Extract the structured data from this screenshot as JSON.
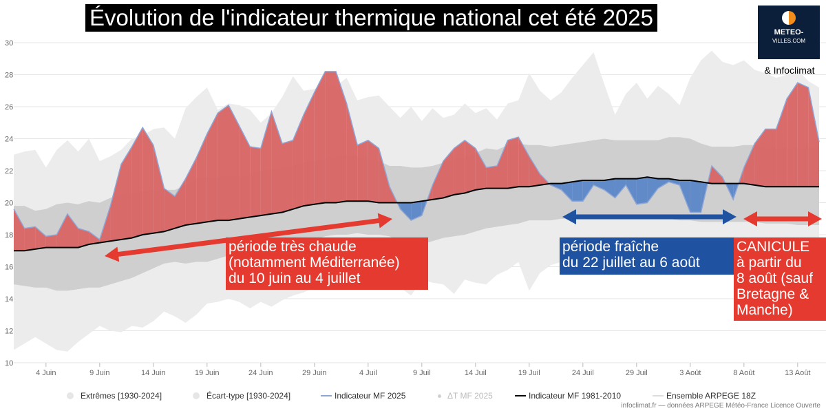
{
  "title": "Évolution de l'indicateur thermique national cet été 2025",
  "logo": {
    "name": "METEO-",
    "subline": "VILLES.COM",
    "icon": "sun-half-icon"
  },
  "partner": "& Infoclimat",
  "source": "infoclimat.fr — données ARPEGE Météo-France Licence Ouverte",
  "colors": {
    "extremes": "#ececec",
    "stddev": "#cfcfcf",
    "indicator_line": "#8ea6d6",
    "above_fill": "#d96464",
    "below_fill": "#5b86c8",
    "normal": "#000000",
    "annotation_red": "#e53a2f",
    "annotation_blue": "#1f52a0"
  },
  "annotations": [
    {
      "id": "hot",
      "color": "red",
      "lines": [
        "période très chaude",
        "(notamment Méditerranée)",
        "du 10 juin au 4 juillet"
      ],
      "arrow_from": "10 Jun",
      "arrow_to": "5 Jul"
    },
    {
      "id": "cool",
      "color": "blue",
      "lines": [
        "période fraîche",
        "du 22 juillet au 6 août"
      ],
      "arrow_from": "22 Jul",
      "arrow_to": "6 Aug"
    },
    {
      "id": "heatwave",
      "color": "red",
      "lines": [
        "CANICULE",
        "à partir du",
        "8 août (sauf",
        "Bretagne &",
        "Manche)"
      ],
      "arrow_from": "6 Aug",
      "arrow_to": "16 Aug"
    }
  ],
  "legend": [
    {
      "label": "Extrêmes [1930-2024]",
      "symbol": "dot",
      "color": "#e3e3e3"
    },
    {
      "label": "Écart-type [1930-2024]",
      "symbol": "dot",
      "color": "#e3e3e3"
    },
    {
      "label": "Indicateur MF 2025",
      "symbol": "line",
      "color": "#8ea6d6"
    },
    {
      "label": "ΔT MF 2025",
      "symbol": "smalldot",
      "color": "#cfcfcf",
      "faded": true
    },
    {
      "label": "Indicateur MF 1981-2010",
      "symbol": "line",
      "color": "#000000"
    },
    {
      "label": "Ensemble ARPEGE 18Z",
      "symbol": "line",
      "color": "#dcdcdc"
    }
  ],
  "chart_data": {
    "type": "area",
    "title": "Évolution de l'indicateur thermique national cet été 2025",
    "xlabel": "",
    "ylabel": "",
    "x_start": "1 Jun",
    "ylim": [
      10,
      30
    ],
    "yticks": [
      10,
      12,
      14,
      16,
      18,
      20,
      22,
      24,
      26,
      28,
      30
    ],
    "xticks": [
      "4 Juin",
      "9 Juin",
      "14 Juin",
      "19 Juin",
      "24 Juin",
      "29 Juin",
      "4 Juil",
      "9 Juil",
      "14 Juil",
      "19 Juil",
      "24 Juil",
      "29 Juil",
      "3 Août",
      "8 Août",
      "13 Août"
    ],
    "grid": true,
    "legend_position": "bottom",
    "series": [
      {
        "name": "Indicateur MF 2025",
        "values": [
          19.6,
          18.4,
          18.5,
          17.9,
          18.0,
          19.3,
          18.4,
          18.2,
          17.7,
          19.8,
          22.4,
          23.5,
          24.7,
          23.6,
          20.9,
          20.4,
          21.5,
          22.8,
          24.3,
          25.6,
          26.1,
          24.8,
          23.5,
          23.4,
          25.7,
          23.7,
          23.9,
          25.5,
          26.9,
          28.2,
          28.2,
          26.2,
          23.6,
          23.9,
          23.4,
          21.0,
          19.6,
          18.9,
          19.2,
          21.1,
          22.6,
          23.4,
          23.9,
          23.4,
          22.2,
          22.3,
          23.9,
          24.1,
          22.9,
          21.8,
          21.1,
          20.8,
          20.1,
          20.1,
          21.1,
          20.8,
          20.3,
          21.1,
          19.9,
          20.0,
          20.9,
          21.3,
          21.1,
          19.4,
          19.4,
          22.3,
          21.6,
          20.2,
          22.2,
          23.7,
          24.6,
          24.6,
          26.5,
          27.5,
          27.2,
          23.8
        ]
      },
      {
        "name": "Indicateur MF 1981-2010",
        "values": [
          17.0,
          17.0,
          17.1,
          17.2,
          17.2,
          17.2,
          17.2,
          17.4,
          17.5,
          17.6,
          17.7,
          17.8,
          18.0,
          18.1,
          18.2,
          18.4,
          18.6,
          18.7,
          18.8,
          18.9,
          18.9,
          19.0,
          19.1,
          19.2,
          19.3,
          19.4,
          19.6,
          19.8,
          19.9,
          20.0,
          20.0,
          20.1,
          20.1,
          20.1,
          20.0,
          20.0,
          20.0,
          20.0,
          20.1,
          20.2,
          20.3,
          20.5,
          20.6,
          20.8,
          20.9,
          20.9,
          20.9,
          21.0,
          21.0,
          21.1,
          21.2,
          21.2,
          21.3,
          21.4,
          21.4,
          21.4,
          21.5,
          21.5,
          21.5,
          21.6,
          21.5,
          21.5,
          21.4,
          21.4,
          21.3,
          21.2,
          21.2,
          21.2,
          21.2,
          21.1,
          21.0,
          21.0,
          21.0,
          21.0,
          21.0,
          21.0
        ]
      }
    ],
    "bands": [
      {
        "name": "Extrêmes [1930-2024]",
        "upper": [
          23.0,
          23.2,
          23.3,
          22.2,
          23.3,
          23.9,
          23.2,
          24.0,
          22.6,
          22.9,
          23.3,
          24.0,
          24.2,
          24.6,
          24.7,
          24.0,
          25.9,
          26.6,
          27.2,
          25.8,
          26.2,
          26.1,
          25.8,
          25.0,
          25.6,
          26.6,
          27.9,
          27.0,
          27.1,
          27.5,
          27.3,
          27.8,
          26.4,
          26.6,
          26.7,
          26.0,
          25.3,
          26.0,
          25.1,
          25.9,
          25.3,
          25.5,
          26.2,
          25.6,
          25.9,
          25.2,
          26.2,
          26.4,
          28.1,
          27.0,
          26.4,
          26.9,
          27.8,
          28.6,
          29.4,
          27.4,
          25.5,
          26.8,
          27.5,
          26.5,
          27.3,
          26.8,
          26.1,
          27.8,
          28.9,
          29.5,
          28.8,
          28.6,
          28.9,
          28.3,
          28.1,
          27.8,
          28.0,
          28.3,
          27.6,
          27.2
        ],
        "lower": [
          10.8,
          11.2,
          11.6,
          11.2,
          10.8,
          10.7,
          11.3,
          11.8,
          12.3,
          12.0,
          11.9,
          12.3,
          12.2,
          12.6,
          13.2,
          12.9,
          12.5,
          13.0,
          13.7,
          13.8,
          14.0,
          13.8,
          13.4,
          13.8,
          13.5,
          13.9,
          14.2,
          14.4,
          14.7,
          14.9,
          15.0,
          14.9,
          15.0,
          15.5,
          15.2,
          15.4,
          14.7,
          14.2,
          15.2,
          15.0,
          14.9,
          14.3,
          15.2,
          15.0,
          14.9,
          15.5,
          15.8,
          16.3,
          14.5,
          15.6,
          16.1,
          16.3,
          16.4,
          16.4,
          16.7,
          16.6,
          16.5,
          16.3,
          16.1,
          16.1,
          16.1,
          16.0,
          15.8,
          16.4,
          16.5,
          16.6,
          16.8,
          16.7,
          16.7,
          16.7,
          16.7,
          16.7,
          16.8,
          16.8,
          16.9,
          16.9
        ]
      },
      {
        "name": "Écart-type [1930-2024]",
        "upper": [
          19.8,
          19.8,
          19.5,
          19.6,
          19.9,
          20.0,
          19.9,
          20.1,
          20.0,
          20.3,
          20.5,
          20.6,
          20.7,
          20.8,
          20.8,
          20.8,
          21.1,
          21.5,
          21.6,
          21.6,
          21.7,
          21.6,
          21.8,
          22.0,
          22.1,
          22.2,
          22.3,
          22.5,
          22.6,
          22.8,
          22.9,
          23.0,
          22.9,
          22.7,
          22.6,
          22.3,
          22.3,
          22.2,
          22.2,
          22.3,
          22.5,
          22.7,
          22.8,
          23.1,
          23.4,
          23.3,
          23.6,
          23.7,
          23.6,
          23.6,
          23.5,
          23.6,
          23.7,
          23.8,
          23.9,
          24.0,
          23.9,
          23.9,
          23.9,
          23.9,
          23.9,
          24.1,
          24.1,
          24.0,
          23.7,
          23.5,
          23.5,
          23.5,
          23.6,
          23.6,
          23.4,
          23.4,
          23.4,
          23.4,
          23.4,
          23.5
        ],
        "lower": [
          14.9,
          14.8,
          14.7,
          14.7,
          14.5,
          14.5,
          14.6,
          14.7,
          14.7,
          14.9,
          15.1,
          15.3,
          15.6,
          15.9,
          16.2,
          16.3,
          16.2,
          16.3,
          16.3,
          16.5,
          16.7,
          16.8,
          16.9,
          16.9,
          17.1,
          17.3,
          17.5,
          17.7,
          17.7,
          17.9,
          18.0,
          18.0,
          18.1,
          18.0,
          18.0,
          17.9,
          17.5,
          17.3,
          17.4,
          17.6,
          17.8,
          17.9,
          18.0,
          18.2,
          18.4,
          18.5,
          18.6,
          18.7,
          18.9,
          18.9,
          18.9,
          19.0,
          19.0,
          19.1,
          19.2,
          19.2,
          19.2,
          19.1,
          19.0,
          19.0,
          19.0,
          19.0,
          18.9,
          18.9,
          18.8,
          18.8,
          18.8,
          18.8,
          18.8,
          18.8,
          18.7,
          18.7,
          18.7,
          18.6,
          18.6,
          18.6
        ]
      }
    ]
  }
}
